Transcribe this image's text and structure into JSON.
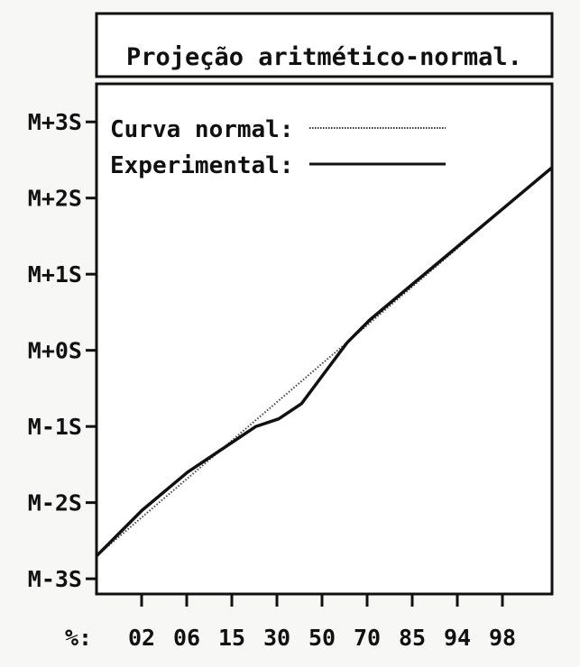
{
  "chart_data": {
    "type": "line",
    "title": "Projeção aritmético-normal.",
    "xlabel": "%:",
    "x_ticks": [
      "02",
      "06",
      "15",
      "30",
      "50",
      "70",
      "85",
      "94",
      "98"
    ],
    "y_ticks": [
      "M-3S",
      "M-2S",
      "M-1S",
      "M+0S",
      "M+1S",
      "M+2S",
      "M+3S"
    ],
    "ylim": [
      -3.2,
      3.5
    ],
    "xlim": [
      0,
      10
    ],
    "legend_position": "top-left",
    "series": [
      {
        "name": "Curva normal",
        "style": "dotted",
        "x": [
          0,
          10
        ],
        "y": [
          -2.7,
          2.4
        ]
      },
      {
        "name": "Experimental",
        "style": "solid",
        "x": [
          0,
          1,
          2,
          3,
          3.5,
          4,
          4.5,
          5,
          5.5,
          6,
          7,
          8,
          9,
          10
        ],
        "y": [
          -2.7,
          -2.1,
          -1.6,
          -1.2,
          -1.0,
          -0.9,
          -0.7,
          -0.3,
          0.1,
          0.4,
          0.9,
          1.4,
          1.9,
          2.4
        ]
      }
    ]
  }
}
